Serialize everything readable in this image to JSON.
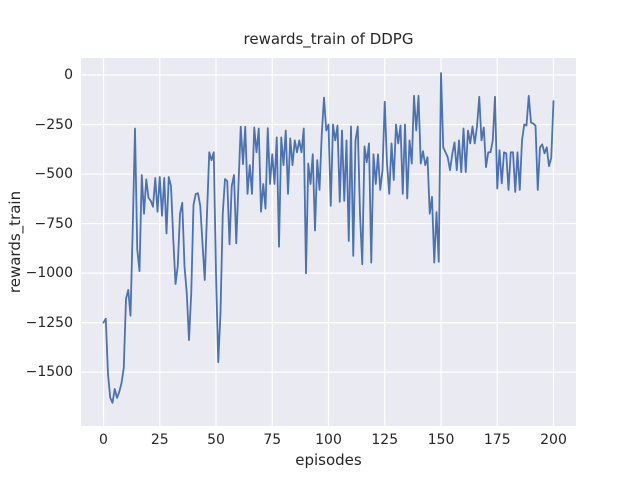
{
  "chart_data": {
    "type": "line",
    "title": "rewards_train of DDPG",
    "xlabel": "episodes",
    "ylabel": "rewards_train",
    "legend": "none",
    "grid": true,
    "xlim": [
      -10,
      210
    ],
    "ylim": [
      -1772,
      86
    ],
    "x_tick_values": [
      0,
      25,
      50,
      75,
      100,
      125,
      150,
      175,
      200
    ],
    "x_tick_labels": [
      "0",
      "25",
      "50",
      "75",
      "100",
      "125",
      "150",
      "175",
      "200"
    ],
    "y_tick_values": [
      0,
      -250,
      -500,
      -750,
      -1000,
      -1250,
      -1500
    ],
    "y_tick_labels": [
      "0",
      "−250",
      "−500",
      "−750",
      "−1000",
      "−1250",
      "−1500"
    ],
    "colors": {
      "line": "#4c72b0",
      "axes_background": "#eaeaf2",
      "figure_background": "#ffffff",
      "grid": "#ffffff",
      "text": "#262626"
    },
    "series": [
      {
        "name": "rewards_train",
        "x_start": 0,
        "x_step": 1,
        "values": [
          -1250,
          -1230,
          -1510,
          -1630,
          -1655,
          -1585,
          -1630,
          -1600,
          -1555,
          -1480,
          -1130,
          -1085,
          -1215,
          -770,
          -270,
          -880,
          -990,
          -505,
          -700,
          -527,
          -620,
          -635,
          -665,
          -520,
          -690,
          -515,
          -710,
          -520,
          -800,
          -515,
          -560,
          -825,
          -1055,
          -965,
          -700,
          -645,
          -965,
          -1100,
          -1338,
          -1100,
          -655,
          -600,
          -597,
          -660,
          -850,
          -1035,
          -700,
          -390,
          -430,
          -390,
          -1000,
          -1450,
          -1200,
          -700,
          -525,
          -535,
          -855,
          -560,
          -505,
          -850,
          -550,
          -261,
          -450,
          -261,
          -600,
          -455,
          -600,
          -265,
          -390,
          -270,
          -690,
          -550,
          -675,
          -268,
          -550,
          -400,
          -550,
          -315,
          -867,
          -315,
          -455,
          -280,
          -600,
          -320,
          -455,
          -330,
          -390,
          -330,
          -390,
          -270,
          -1001,
          -447,
          -550,
          -400,
          -785,
          -430,
          -580,
          -300,
          -114,
          -280,
          -250,
          -660,
          -250,
          -330,
          -255,
          -640,
          -280,
          -635,
          -330,
          -838,
          -260,
          -913,
          -330,
          -260,
          -700,
          -955,
          -360,
          -440,
          -345,
          -947,
          -400,
          -550,
          -400,
          -580,
          -480,
          -135,
          -447,
          -600,
          -345,
          -530,
          -250,
          -345,
          -255,
          -600,
          -250,
          -623,
          -330,
          -447,
          -105,
          -280,
          -105,
          -447,
          -385,
          -455,
          -415,
          -700,
          -615,
          -947,
          -692,
          -943,
          10,
          -365,
          -390,
          -415,
          -480,
          -400,
          -340,
          -480,
          -330,
          -490,
          -270,
          -490,
          -280,
          -345,
          -260,
          -345,
          -260,
          -110,
          -330,
          -265,
          -465,
          -390,
          -390,
          -330,
          -110,
          -573,
          -380,
          -547,
          -390,
          -395,
          -580,
          -390,
          -390,
          -590,
          -390,
          -580,
          -330,
          -250,
          -255,
          -105,
          -240,
          -245,
          -255,
          -580,
          -365,
          -350,
          -395,
          -365,
          -460,
          -418,
          -131
        ]
      }
    ]
  }
}
